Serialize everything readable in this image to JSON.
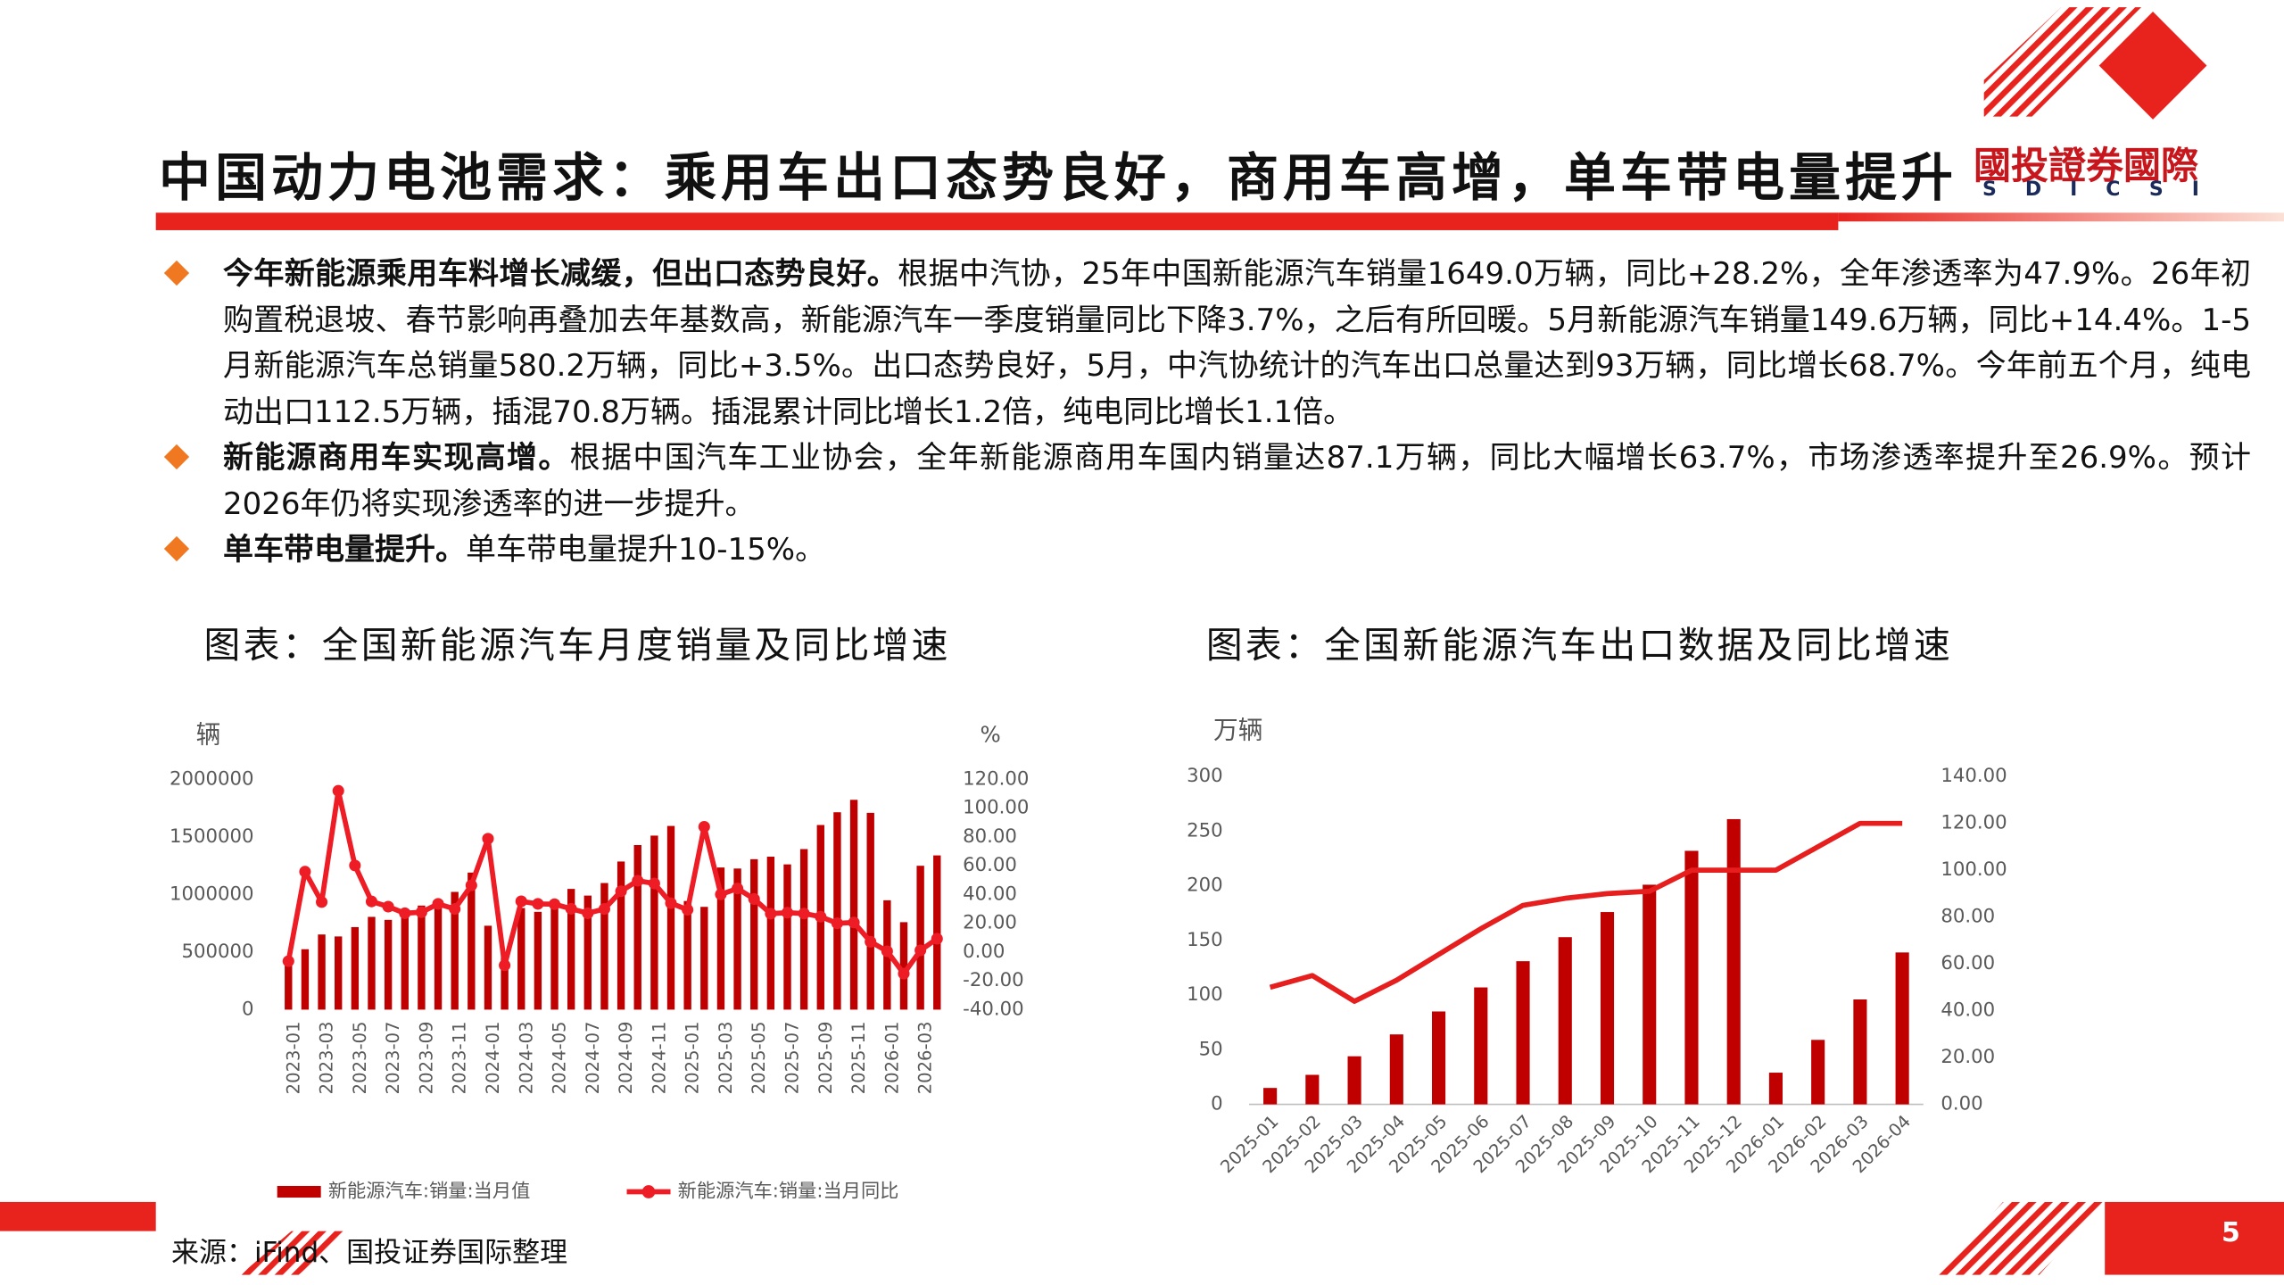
{
  "header": {
    "title": "中国动力电池需求：乘用车出口态势良好，商用车高增，单车带电量提升",
    "logo": "國投證券國際",
    "logo_sub": "SDICSI"
  },
  "bullets": [
    {
      "bold": "今年新能源乘用车料增长减缓，但出口态势良好。",
      "text": "根据中汽协，25年中国新能源汽车销量1649.0万辆，同比+28.2%，全年渗透率为47.9%。26年初购置税退坡、春节影响再叠加去年基数高，新能源汽车一季度销量同比下降3.7%，之后有所回暖。5月新能源汽车销量149.6万辆，同比+14.4%。1-5月新能源汽车总销量580.2万辆，同比+3.5%。出口态势良好，5月，中汽协统计的汽车出口总量达到93万辆，同比增长68.7%。今年前五个月，纯电动出口112.5万辆，插混70.8万辆。插混累计同比增长1.2倍，纯电同比增长1.1倍。"
    },
    {
      "bold": "新能源商用车实现高增。",
      "text": "根据中国汽车工业协会，全年新能源商用车国内销量达87.1万辆，同比大幅增长63.7%，市场渗透率提升至26.9%。预计2026年仍将实现渗透率的进一步提升。"
    },
    {
      "bold": "单车带电量提升。",
      "text": "单车带电量提升10-15%。"
    }
  ],
  "chart_data": [
    {
      "type": "bar_line",
      "title": "图表：全国新能源汽车月度销量及同比增速",
      "y_label": "辆",
      "y2_label": "%",
      "categories": [
        "2023-01",
        null,
        "2023-03",
        null,
        "2023-05",
        null,
        "2023-07",
        null,
        "2023-09",
        null,
        "2023-11",
        null,
        "2024-01",
        null,
        "2024-03",
        null,
        "2024-05",
        null,
        "2024-07",
        null,
        "2024-09",
        null,
        "2024-11",
        null,
        "2025-01",
        null,
        "2025-03",
        null,
        "2025-05",
        null,
        "2025-07",
        null,
        "2025-09",
        null,
        "2025-11",
        null,
        "2026-01",
        null,
        "2026-03",
        null
      ],
      "series": [
        {
          "name": "新能源汽车:销量:当月值",
          "type": "bar",
          "color": "#c00000",
          "values": [
            408000,
            525000,
            653000,
            636000,
            717000,
            806000,
            780000,
            846000,
            904000,
            956000,
            1023000,
            1191000,
            729000,
            477000,
            883000,
            850000,
            955000,
            1049000,
            991000,
            1100000,
            1287000,
            1430000,
            1512000,
            1596000,
            944000,
            893000,
            1235000,
            1226000,
            1307000,
            1329000,
            1262000,
            1395000,
            1604000,
            1715000,
            1823000,
            1710000,
            950000,
            760000,
            1250000,
            1340000
          ]
        },
        {
          "name": "新能源汽车:销量:当月同比",
          "type": "line",
          "axis": "y2",
          "color": "#ee1c25",
          "marker": true,
          "values": [
            -6.3,
            55.9,
            34.8,
            112.1,
            60.2,
            35.2,
            31.6,
            27.0,
            27.7,
            33.5,
            30.0,
            46.4,
            78.8,
            -9.2,
            35.3,
            33.5,
            33.3,
            30.1,
            27.0,
            30.0,
            42.3,
            49.6,
            47.7,
            34.0,
            29.4,
            87.1,
            40.1,
            44.2,
            36.9,
            26.7,
            27.4,
            26.8,
            24.6,
            20.0,
            20.6,
            7.2,
            0.6,
            -15.0,
            1.2,
            9.3
          ]
        }
      ],
      "ylim": [
        0,
        2000000
      ],
      "yticks": [
        0,
        500000,
        1000000,
        1500000,
        2000000
      ],
      "y2lim": [
        -40,
        120
      ],
      "y2ticks": [
        {
          "value": -40,
          "label": "-40.00"
        },
        {
          "value": -20,
          "label": "-20.00"
        },
        {
          "value": 0,
          "label": "0.00"
        },
        {
          "value": 20,
          "label": "20.00"
        },
        {
          "value": 40,
          "label": "40.00"
        },
        {
          "value": 60,
          "label": "60.00"
        },
        {
          "value": 80,
          "label": "80.00"
        },
        {
          "value": 100,
          "label": "100.00"
        },
        {
          "value": 120,
          "label": "120.00"
        }
      ],
      "legend": "bottom"
    },
    {
      "type": "bar_line",
      "title": "图表：全国新能源汽车出口数据及同比增速",
      "y_label": "万辆",
      "categories": [
        "2025-01",
        "2025-02",
        "2025-03",
        "2025-04",
        "2025-05",
        "2025-06",
        "2025-07",
        "2025-08",
        "2025-09",
        "2025-10",
        "2025-11",
        "2025-12",
        "2026-01",
        "2026-02",
        "2026-03",
        "2026-04"
      ],
      "series": [
        {
          "type": "bar",
          "color": "#c00000",
          "values": [
            15,
            27,
            44,
            64,
            85,
            107,
            131,
            153,
            176,
            201,
            232,
            261,
            29,
            59,
            96,
            139
          ]
        },
        {
          "type": "line",
          "axis": "y2",
          "color": "#e61e1e",
          "values": [
            50,
            55,
            44,
            53,
            64,
            75,
            85,
            88,
            90,
            91,
            100,
            100,
            100,
            110,
            120,
            120
          ]
        }
      ],
      "ylim": [
        0,
        300
      ],
      "yticks": [
        0,
        50,
        100,
        150,
        200,
        250,
        300
      ],
      "y2lim": [
        0,
        140
      ],
      "y2ticks": [
        {
          "value": 0,
          "label": "0.00"
        },
        {
          "value": 20,
          "label": "20.00"
        },
        {
          "value": 40,
          "label": "40.00"
        },
        {
          "value": 60,
          "label": "60.00"
        },
        {
          "value": 80,
          "label": "80.00"
        },
        {
          "value": 100,
          "label": "100.00"
        },
        {
          "value": 120,
          "label": "120.00"
        },
        {
          "value": 140,
          "label": "140.00"
        }
      ]
    }
  ],
  "source": "来源：iFind、国投证券国际整理",
  "page_number": 5
}
